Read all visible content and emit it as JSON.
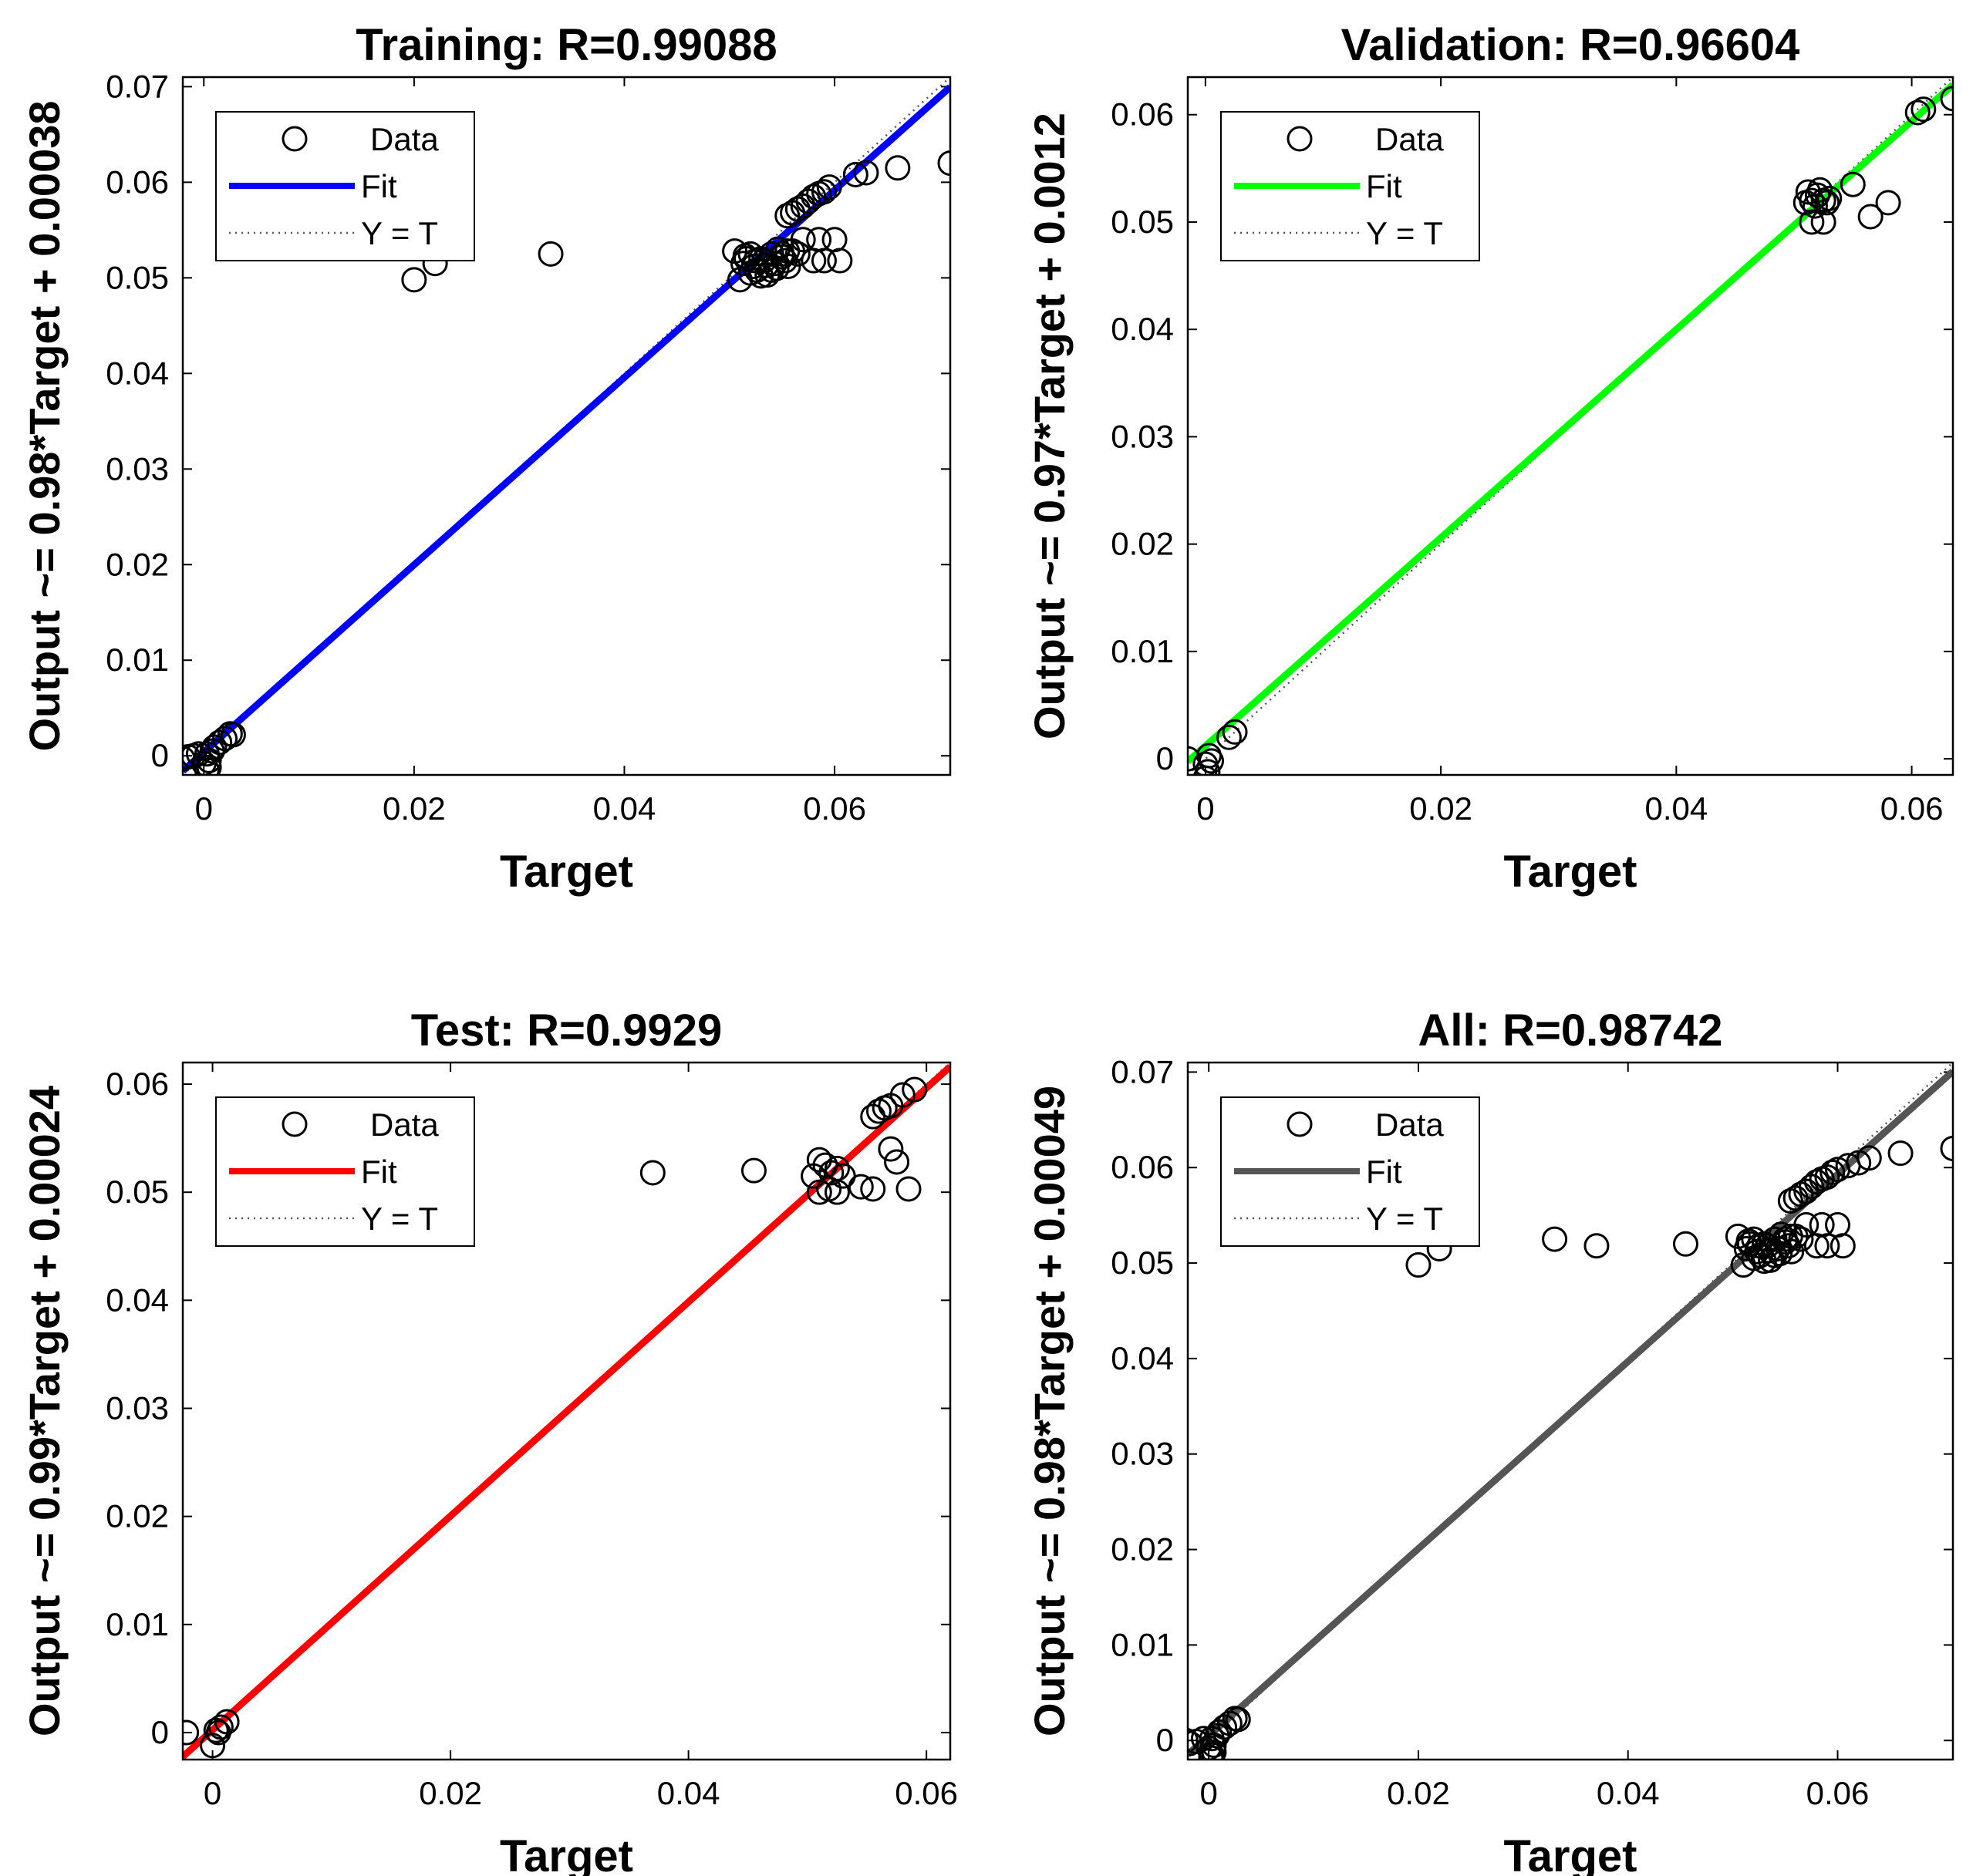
{
  "chart_data": [
    {
      "type": "scatter",
      "title": "Training: R=0.99088",
      "xlabel": "Target",
      "ylabel": "Output ~= 0.98*Target + 0.00038",
      "xlim": [
        -0.002,
        0.071
      ],
      "ylim": [
        -0.002,
        0.071
      ],
      "xticks": [
        0,
        0.02,
        0.04,
        0.06
      ],
      "xtick_labels": [
        "0",
        "0.02",
        "0.04",
        "0.06"
      ],
      "yticks": [
        0,
        0.01,
        0.02,
        0.03,
        0.04,
        0.05,
        0.06,
        0.07
      ],
      "ytick_labels": [
        "0",
        "0.01",
        "0.02",
        "0.03",
        "0.04",
        "0.05",
        "0.06",
        "0.07"
      ],
      "fit": {
        "slope": 0.98,
        "intercept": 0.00038,
        "color": "#0000ff"
      },
      "legend": {
        "position": "top-left",
        "entries": [
          "Data",
          "Fit",
          "Y = T"
        ]
      },
      "series": [
        {
          "name": "Data",
          "x": [
            -0.002,
            -0.0015,
            -0.001,
            -0.0005,
            0,
            0.0003,
            0.0005,
            0.0008,
            0.001,
            0.0015,
            0.002,
            0.0025,
            0.0028,
            0.0003,
            0.0005,
            0.02,
            0.022,
            0.033,
            0.0505,
            0.051,
            0.0513,
            0.0516,
            0.052,
            0.0523,
            0.0526,
            0.053,
            0.0533,
            0.0536,
            0.054,
            0.0543,
            0.0546,
            0.055,
            0.0553,
            0.0556,
            0.056,
            0.052,
            0.053,
            0.054,
            0.055,
            0.0515,
            0.0525,
            0.0535,
            0.0545,
            0.0555,
            0.0565,
            0.057,
            0.058,
            0.0585,
            0.059,
            0.06,
            0.0605,
            0.0555,
            0.056,
            0.0565,
            0.057,
            0.0575,
            0.058,
            0.0585,
            0.059,
            0.0595,
            0.062,
            0.063,
            0.066,
            0.071
          ],
          "y": [
            -0.0003,
            -0.0001,
            0.0,
            0.0002,
            -0.0008,
            -0.0015,
            -0.0012,
            0.0005,
            0.0009,
            0.0014,
            0.0018,
            0.0023,
            0.0022,
            0.0002,
            -0.0005,
            0.0498,
            0.0515,
            0.0525,
            0.0528,
            0.0498,
            0.0515,
            0.052,
            0.0525,
            0.0512,
            0.0508,
            0.052,
            0.0518,
            0.0503,
            0.0525,
            0.0515,
            0.053,
            0.0522,
            0.0518,
            0.0512,
            0.0528,
            0.0505,
            0.0502,
            0.0508,
            0.0525,
            0.0523,
            0.0518,
            0.0513,
            0.051,
            0.0528,
            0.0525,
            0.054,
            0.0518,
            0.054,
            0.0518,
            0.054,
            0.0518,
            0.0565,
            0.0568,
            0.0572,
            0.0575,
            0.058,
            0.0585,
            0.0588,
            0.059,
            0.0595,
            0.0608,
            0.061,
            0.0615,
            0.062
          ]
        }
      ]
    },
    {
      "type": "scatter",
      "title": "Validation: R=0.96604",
      "xlabel": "Target",
      "ylabel": "Output ~= 0.97*Target + 0.0012",
      "xlim": [
        -0.0015,
        0.0635
      ],
      "ylim": [
        -0.0015,
        0.0635
      ],
      "xticks": [
        0,
        0.02,
        0.04,
        0.06
      ],
      "xtick_labels": [
        "0",
        "0.02",
        "0.04",
        "0.06"
      ],
      "yticks": [
        0,
        0.01,
        0.02,
        0.03,
        0.04,
        0.05,
        0.06
      ],
      "ytick_labels": [
        "0",
        "0.01",
        "0.02",
        "0.03",
        "0.04",
        "0.05",
        "0.06"
      ],
      "fit": {
        "slope": 0.97,
        "intercept": 0.0012,
        "color": "#00ff00"
      },
      "legend": {
        "position": "top-left",
        "entries": [
          "Data",
          "Fit",
          "Y = T"
        ]
      },
      "series": [
        {
          "name": "Data",
          "x": [
            -0.0015,
            0,
            0.0002,
            0.0005,
            0,
            0.0003,
            0.002,
            0.0025,
            0.051,
            0.0515,
            0.052,
            0.0525,
            0.053,
            0.0512,
            0.0518,
            0.0522,
            0.0528,
            0.0515,
            0.0525,
            0.055,
            0.0565,
            0.058,
            0.0605,
            0.061,
            0.0635
          ],
          "y": [
            0.0,
            -0.0005,
            -0.0012,
            -0.0002,
            -0.0018,
            0.0003,
            0.002,
            0.0025,
            0.0518,
            0.052,
            0.0525,
            0.052,
            0.0522,
            0.0528,
            0.0515,
            0.053,
            0.0518,
            0.05,
            0.05,
            0.0535,
            0.0505,
            0.0518,
            0.0602,
            0.0605,
            0.0615
          ]
        }
      ]
    },
    {
      "type": "scatter",
      "title": "Test: R=0.9929",
      "xlabel": "Target",
      "ylabel": "Output ~= 0.99*Target + 0.00024",
      "xlim": [
        -0.0025,
        0.062
      ],
      "ylim": [
        -0.0025,
        0.062
      ],
      "xticks": [
        0,
        0.02,
        0.04,
        0.06
      ],
      "xtick_labels": [
        "0",
        "0.02",
        "0.04",
        "0.06"
      ],
      "yticks": [
        0,
        0.01,
        0.02,
        0.03,
        0.04,
        0.05,
        0.06
      ],
      "ytick_labels": [
        "0",
        "0.01",
        "0.02",
        "0.03",
        "0.04",
        "0.05",
        "0.06"
      ],
      "fit": {
        "slope": 0.99,
        "intercept": 0.00024,
        "color": "#ff0000"
      },
      "legend": {
        "position": "top-left",
        "entries": [
          "Data",
          "Fit",
          "Y = T"
        ]
      },
      "series": [
        {
          "name": "Data",
          "x": [
            -0.0022,
            0.0,
            0.0003,
            0.0005,
            0.0007,
            0.0012,
            0.037,
            0.0455,
            0.0505,
            0.051,
            0.0515,
            0.052,
            0.0525,
            0.053,
            0.051,
            0.0525,
            0.0545,
            0.0555,
            0.057,
            0.0575,
            0.0585,
            0.0555,
            0.056,
            0.0565,
            0.057,
            0.058,
            0.059,
            0.0518
          ],
          "y": [
            0.0,
            -0.0012,
            0.0002,
            0.0,
            0.0005,
            0.001,
            0.0518,
            0.052,
            0.0515,
            0.053,
            0.0525,
            0.0518,
            0.0522,
            0.0515,
            0.05,
            0.05,
            0.0505,
            0.0503,
            0.054,
            0.0528,
            0.0503,
            0.057,
            0.0575,
            0.0578,
            0.058,
            0.059,
            0.0595,
            0.0503
          ]
        }
      ]
    },
    {
      "type": "scatter",
      "title": "All: R=0.98742",
      "xlabel": "Target",
      "ylabel": "Output ~= 0.98*Target + 0.00049",
      "xlim": [
        -0.002,
        0.071
      ],
      "ylim": [
        -0.002,
        0.071
      ],
      "xticks": [
        0,
        0.02,
        0.04,
        0.06
      ],
      "xtick_labels": [
        "0",
        "0.02",
        "0.04",
        "0.06"
      ],
      "yticks": [
        0,
        0.01,
        0.02,
        0.03,
        0.04,
        0.05,
        0.06,
        0.07
      ],
      "ytick_labels": [
        "0",
        "0.01",
        "0.02",
        "0.03",
        "0.04",
        "0.05",
        "0.06",
        "0.07"
      ],
      "fit": {
        "slope": 0.98,
        "intercept": 0.00049,
        "color": "#555555"
      },
      "legend": {
        "position": "top-left",
        "entries": [
          "Data",
          "Fit",
          "Y = T"
        ]
      },
      "series": [
        {
          "name": "Data",
          "x": [
            -0.0022,
            -0.0018,
            -0.0012,
            -0.0005,
            0.0,
            0.0003,
            0.0005,
            0.0008,
            0.001,
            0.0015,
            0.002,
            0.0025,
            0.0028,
            0.0003,
            0.0005,
            0.0002,
            0.02,
            0.022,
            0.033,
            0.037,
            0.0455,
            0.0505,
            0.051,
            0.0513,
            0.0516,
            0.052,
            0.0523,
            0.0526,
            0.053,
            0.0533,
            0.0536,
            0.054,
            0.0543,
            0.0546,
            0.055,
            0.0553,
            0.0556,
            0.056,
            0.052,
            0.053,
            0.054,
            0.055,
            0.0515,
            0.0525,
            0.0535,
            0.0545,
            0.0555,
            0.0565,
            0.057,
            0.058,
            0.0585,
            0.059,
            0.06,
            0.0605,
            0.0555,
            0.056,
            0.0565,
            0.057,
            0.0575,
            0.058,
            0.0585,
            0.059,
            0.0595,
            0.06,
            0.061,
            0.062,
            0.063,
            0.066,
            0.071
          ],
          "y": [
            0.0,
            -0.0003,
            -0.0001,
            0.0002,
            -0.0008,
            -0.0015,
            -0.0012,
            0.0005,
            0.0009,
            0.0014,
            0.0018,
            0.0023,
            0.0022,
            0.0002,
            -0.0005,
            -0.0018,
            0.0498,
            0.0515,
            0.0525,
            0.0518,
            0.052,
            0.0528,
            0.0498,
            0.0515,
            0.052,
            0.0525,
            0.0512,
            0.0508,
            0.052,
            0.0518,
            0.0503,
            0.0525,
            0.0515,
            0.053,
            0.0522,
            0.0518,
            0.0512,
            0.0528,
            0.0505,
            0.0502,
            0.0508,
            0.0525,
            0.0523,
            0.0518,
            0.0513,
            0.051,
            0.0528,
            0.0525,
            0.054,
            0.0518,
            0.054,
            0.0518,
            0.054,
            0.0518,
            0.0565,
            0.0568,
            0.0572,
            0.0575,
            0.058,
            0.0585,
            0.0588,
            0.059,
            0.0595,
            0.0598,
            0.0602,
            0.0605,
            0.061,
            0.0615,
            0.062
          ]
        }
      ]
    }
  ]
}
